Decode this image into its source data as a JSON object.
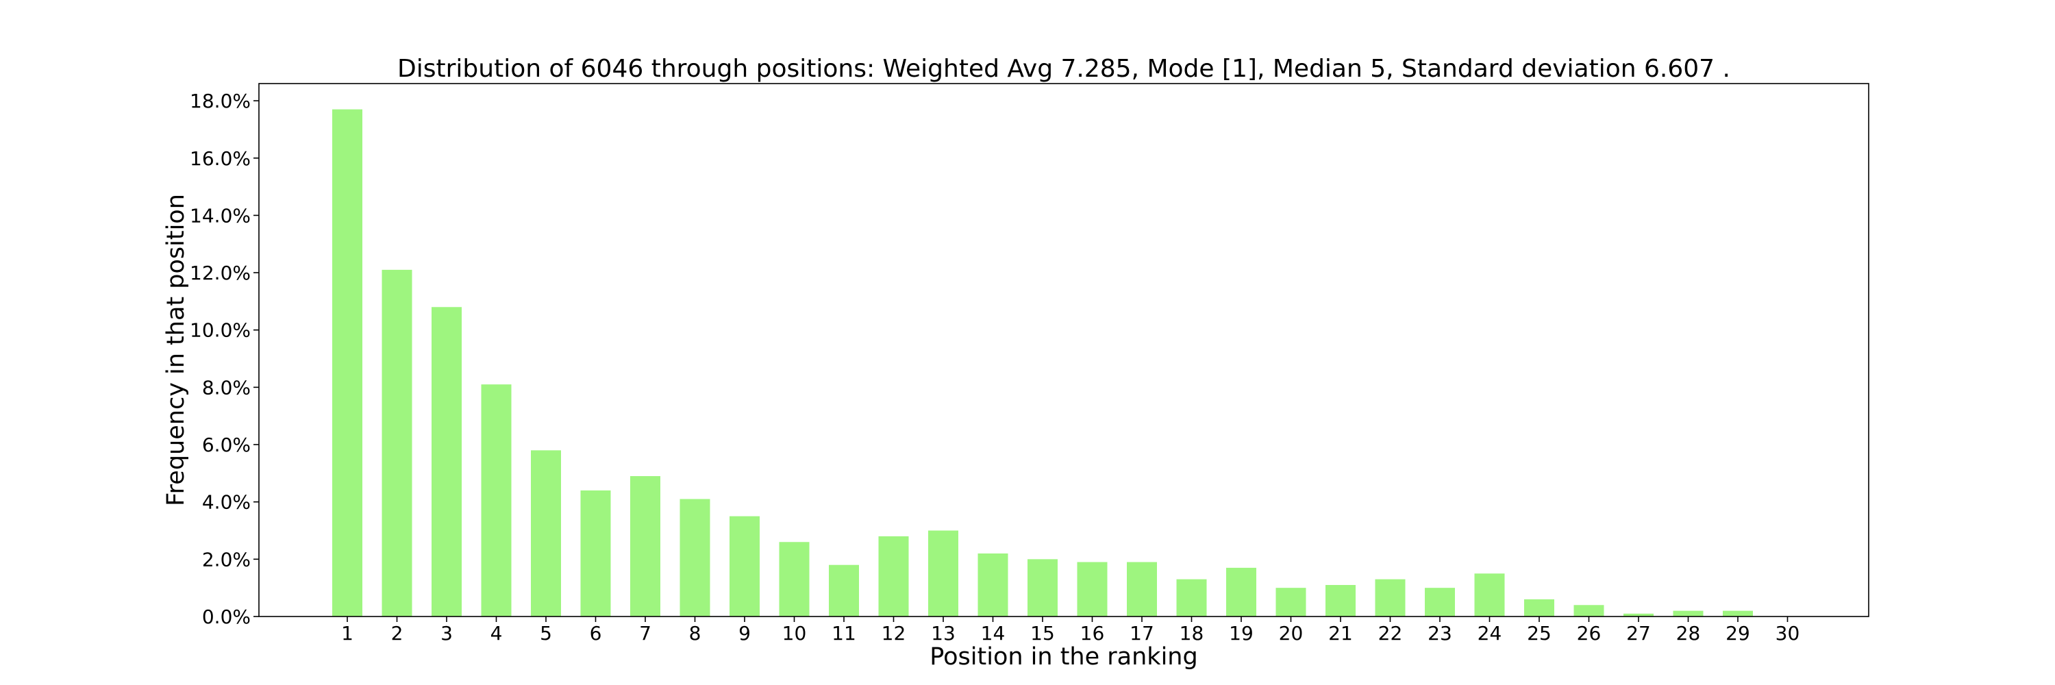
{
  "chart_data": {
    "type": "bar",
    "title": "Distribution of 6046 through positions: Weighted Avg 7.285, Mode [1], Median 5, Standard deviation 6.607 .",
    "xlabel": "Position in the ranking",
    "ylabel": "Frequency in that position",
    "categories": [
      "1",
      "2",
      "3",
      "4",
      "5",
      "6",
      "7",
      "8",
      "9",
      "10",
      "11",
      "12",
      "13",
      "14",
      "15",
      "16",
      "17",
      "18",
      "19",
      "20",
      "21",
      "22",
      "23",
      "24",
      "25",
      "26",
      "27",
      "28",
      "29",
      "30"
    ],
    "values": [
      17.7,
      12.1,
      10.8,
      8.1,
      5.8,
      4.4,
      4.9,
      4.1,
      3.5,
      2.6,
      1.8,
      2.8,
      3.0,
      2.2,
      2.0,
      1.9,
      1.9,
      1.3,
      1.7,
      1.0,
      1.1,
      1.3,
      1.0,
      1.5,
      0.6,
      0.4,
      0.1,
      0.2,
      0.2,
      0.0
    ],
    "ylim": [
      0,
      18.6
    ],
    "yticks": [
      0,
      2,
      4,
      6,
      8,
      10,
      12,
      14,
      16,
      18
    ],
    "ytick_labels": [
      "0.0%",
      "2.0%",
      "4.0%",
      "6.0%",
      "8.0%",
      "10.0%",
      "12.0%",
      "14.0%",
      "16.0%",
      "18.0%"
    ],
    "bar_color": "#9ef57f",
    "grid": false,
    "legend": "none"
  }
}
